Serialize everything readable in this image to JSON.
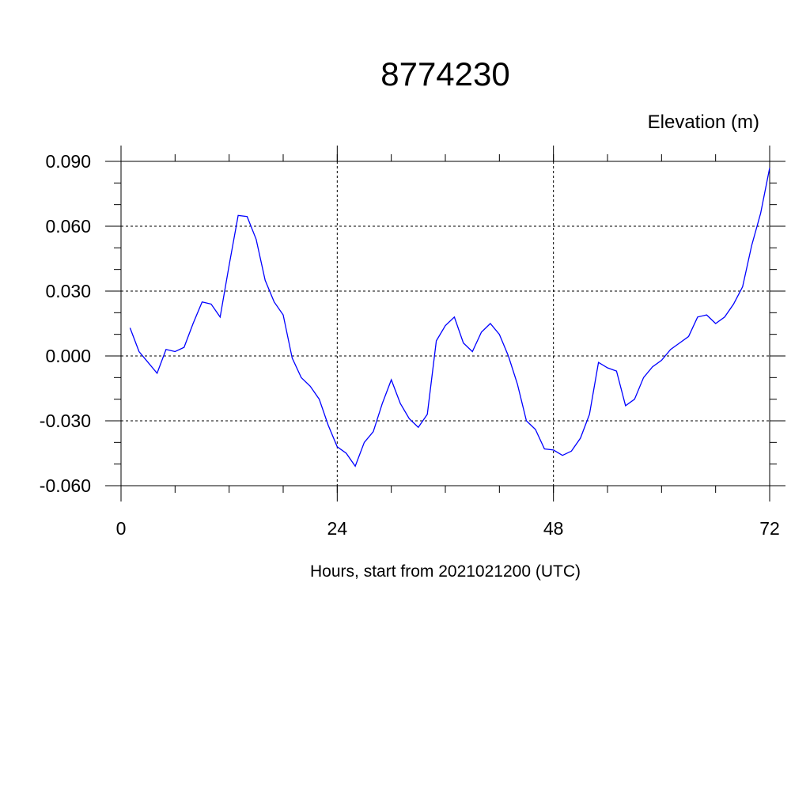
{
  "chart_data": {
    "type": "line",
    "title": "8774230",
    "subtitle": "Elevation (m)",
    "xlabel": "Hours, start from 2021021200 (UTC)",
    "ylabel": "",
    "xlim": [
      0,
      72
    ],
    "ylim": [
      -0.06,
      0.09
    ],
    "x_ticks": [
      0,
      24,
      48,
      72
    ],
    "x_tick_labels": [
      "0",
      "24",
      "48",
      "72"
    ],
    "y_ticks": [
      -0.06,
      -0.03,
      0.0,
      0.03,
      0.06,
      0.09
    ],
    "y_tick_labels": [
      "-0.060",
      "-0.030",
      "0.000",
      "0.030",
      "0.060",
      "0.090"
    ],
    "grid": true,
    "line_color": "#0000ff",
    "series": [
      {
        "x": [
          1,
          2,
          3,
          4,
          5,
          6,
          7,
          8,
          9,
          10,
          11,
          12,
          13,
          14,
          15,
          16,
          17,
          18,
          19,
          20,
          21,
          22,
          23,
          24,
          25,
          26,
          27,
          28,
          29,
          30,
          31,
          32,
          33,
          34,
          35,
          36,
          37,
          38,
          39,
          40,
          41,
          42,
          43,
          44,
          45,
          46,
          47,
          48,
          49,
          50,
          51,
          52,
          53,
          54,
          55,
          56,
          57,
          58,
          59,
          60,
          61,
          62,
          63,
          64,
          65,
          66,
          67,
          68,
          69,
          70,
          71,
          72
        ],
        "values": [
          0.013,
          0.002,
          -0.003,
          -0.008,
          0.003,
          0.002,
          0.004,
          0.015,
          0.025,
          0.024,
          0.018,
          0.042,
          0.065,
          0.0645,
          0.054,
          0.035,
          0.025,
          0.019,
          -0.001,
          -0.01,
          -0.014,
          -0.02,
          -0.032,
          -0.042,
          -0.045,
          -0.051,
          -0.04,
          -0.035,
          -0.022,
          -0.011,
          -0.022,
          -0.029,
          -0.033,
          -0.027,
          0.007,
          0.014,
          0.018,
          0.006,
          0.002,
          0.011,
          0.015,
          0.01,
          0.0,
          -0.013,
          -0.03,
          -0.034,
          -0.043,
          -0.0435,
          -0.046,
          -0.044,
          -0.038,
          -0.027,
          -0.003,
          -0.0055,
          -0.007,
          -0.023,
          -0.02,
          -0.01,
          -0.005,
          -0.002,
          0.003,
          0.006,
          0.009,
          0.018,
          0.019,
          0.015,
          0.018,
          0.024,
          0.032,
          0.051,
          0.066,
          0.087
        ]
      }
    ]
  }
}
